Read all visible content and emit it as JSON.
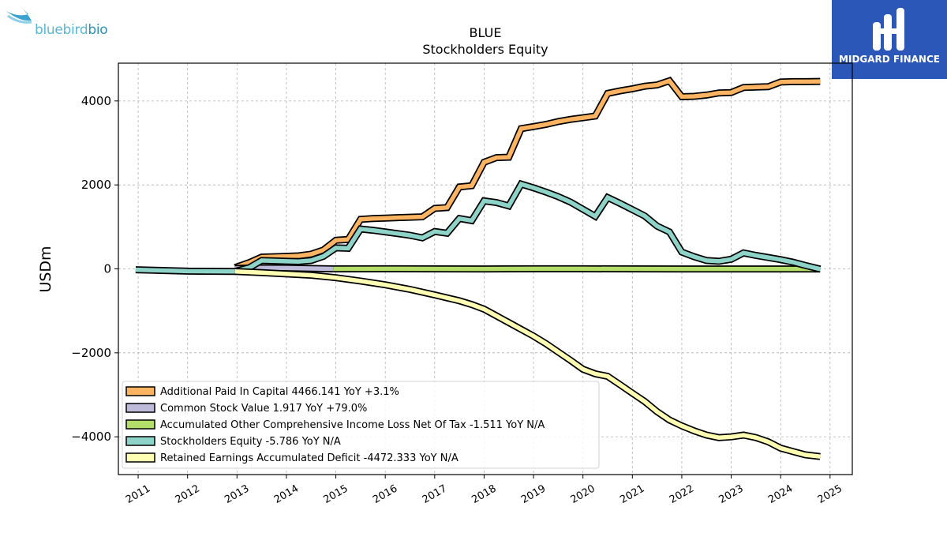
{
  "logos": {
    "left_brand_light": "bluebird",
    "left_brand_dark": "bio",
    "right_name": "MIDGARD FINANCE"
  },
  "chart_data": {
    "type": "line",
    "title": "BLUE",
    "subtitle": "Stockholders  Equity",
    "ylabel": "USDm",
    "xlabel": "",
    "xlim": [
      2010.6,
      2025.45
    ],
    "ylim": [
      -4900,
      4900
    ],
    "yticks": [
      -4000,
      -2000,
      0,
      2000,
      4000
    ],
    "ytick_labels": [
      "−4000",
      "−2000",
      "0",
      "2000",
      "4000"
    ],
    "xticks": [
      2011,
      2012,
      2013,
      2014,
      2015,
      2016,
      2017,
      2018,
      2019,
      2020,
      2021,
      2022,
      2023,
      2024,
      2025
    ],
    "xtick_labels": [
      "2011",
      "2012",
      "2013",
      "2014",
      "2015",
      "2016",
      "2017",
      "2018",
      "2019",
      "2020",
      "2021",
      "2022",
      "2023",
      "2024",
      "2025"
    ],
    "grid": true,
    "legend_position": "lower-left",
    "series": [
      {
        "name": "Additional Paid In Capital",
        "legend": "Additional Paid In Capital  4466.141 YoY +3.1%",
        "color": "#fdb462",
        "x": [
          2012.96,
          2013.25,
          2013.5,
          2013.75,
          2014.0,
          2014.25,
          2014.5,
          2014.75,
          2015.0,
          2015.25,
          2015.5,
          2015.75,
          2016.0,
          2016.25,
          2016.5,
          2016.75,
          2017.0,
          2017.25,
          2017.5,
          2017.75,
          2018.0,
          2018.25,
          2018.5,
          2018.75,
          2019.0,
          2019.25,
          2019.5,
          2019.75,
          2020.0,
          2020.25,
          2020.5,
          2020.75,
          2021.0,
          2021.25,
          2021.5,
          2021.75,
          2022.0,
          2022.25,
          2022.5,
          2022.75,
          2023.0,
          2023.25,
          2023.5,
          2023.75,
          2024.0,
          2024.25,
          2024.5,
          2024.8
        ],
        "y": [
          30,
          150,
          280,
          290,
          300,
          310,
          350,
          450,
          680,
          700,
          1180,
          1200,
          1210,
          1220,
          1230,
          1240,
          1440,
          1460,
          1950,
          1980,
          2540,
          2650,
          2660,
          3340,
          3390,
          3440,
          3510,
          3560,
          3600,
          3640,
          4180,
          4240,
          4290,
          4350,
          4380,
          4480,
          4100,
          4110,
          4140,
          4190,
          4200,
          4320,
          4330,
          4340,
          4450,
          4460,
          4460,
          4466
        ]
      },
      {
        "name": "Common Stock Value",
        "legend": "Common Stock Value  1.917 YoY +79.0%",
        "color": "#bebada",
        "x": [
          2012.96,
          2013.3,
          2013.6,
          2014.0,
          2014.5,
          2014.95
        ],
        "y": [
          10,
          20,
          25,
          20,
          10,
          0
        ]
      },
      {
        "name": "Accumulated Other Comprehensive Income Loss Net Of Tax",
        "legend": "Accumulated Other Comprehensive Income Loss Net Of Tax  -1.511 YoY N/A",
        "color": "#b3de69",
        "x": [
          2014.95,
          2016.0,
          2017.0,
          2018.0,
          2019.0,
          2020.0,
          2021.0,
          2022.0,
          2023.0,
          2024.0,
          2024.8
        ],
        "y": [
          0,
          1,
          0,
          -1,
          2,
          1,
          0,
          -1,
          -2,
          -1,
          -1.5
        ]
      },
      {
        "name": "Stockholders Equity",
        "legend": "Stockholders Equity  -5.786 YoY N/A",
        "color": "#8dd3c7",
        "x": [
          2010.95,
          2012.0,
          2012.96,
          2013.25,
          2013.5,
          2013.75,
          2014.0,
          2014.25,
          2014.5,
          2014.75,
          2015.0,
          2015.25,
          2015.5,
          2015.75,
          2016.0,
          2016.25,
          2016.5,
          2016.75,
          2017.0,
          2017.25,
          2017.5,
          2017.75,
          2018.0,
          2018.25,
          2018.5,
          2018.75,
          2019.0,
          2019.25,
          2019.5,
          2019.75,
          2020.0,
          2020.25,
          2020.5,
          2020.75,
          2021.0,
          2021.25,
          2021.5,
          2021.75,
          2022.0,
          2022.25,
          2022.5,
          2022.75,
          2023.0,
          2023.25,
          2023.5,
          2023.75,
          2024.0,
          2024.25,
          2024.5,
          2024.8
        ],
        "y": [
          -20,
          -55,
          -60,
          30,
          200,
          190,
          180,
          175,
          200,
          300,
          500,
          490,
          950,
          920,
          880,
          840,
          800,
          740,
          890,
          850,
          1200,
          1150,
          1620,
          1580,
          1500,
          2020,
          1930,
          1830,
          1720,
          1590,
          1420,
          1250,
          1700,
          1560,
          1410,
          1260,
          1020,
          880,
          400,
          290,
          200,
          180,
          230,
          380,
          320,
          270,
          220,
          160,
          80,
          -6
        ]
      },
      {
        "name": "Retained Earnings Accumulated Deficit",
        "legend": "Retained Earnings Accumulated Deficit  -4472.333 YoY N/A",
        "color": "#ffffb3",
        "x": [
          2012.96,
          2013.5,
          2014.0,
          2014.5,
          2015.0,
          2015.5,
          2016.0,
          2016.5,
          2017.0,
          2017.5,
          2017.75,
          2018.0,
          2018.25,
          2018.5,
          2018.75,
          2019.0,
          2019.25,
          2019.5,
          2019.75,
          2020.0,
          2020.25,
          2020.5,
          2020.75,
          2021.0,
          2021.25,
          2021.5,
          2021.75,
          2022.0,
          2022.25,
          2022.5,
          2022.75,
          2023.0,
          2023.25,
          2023.5,
          2023.75,
          2024.0,
          2024.25,
          2024.5,
          2024.8
        ],
        "y": [
          -60,
          -90,
          -120,
          -150,
          -210,
          -290,
          -380,
          -490,
          -620,
          -760,
          -850,
          -960,
          -1120,
          -1280,
          -1440,
          -1600,
          -1780,
          -1980,
          -2180,
          -2390,
          -2500,
          -2560,
          -2760,
          -2960,
          -3160,
          -3400,
          -3600,
          -3740,
          -3860,
          -3960,
          -4020,
          -4000,
          -3960,
          -4020,
          -4120,
          -4270,
          -4350,
          -4430,
          -4472
        ]
      }
    ]
  }
}
